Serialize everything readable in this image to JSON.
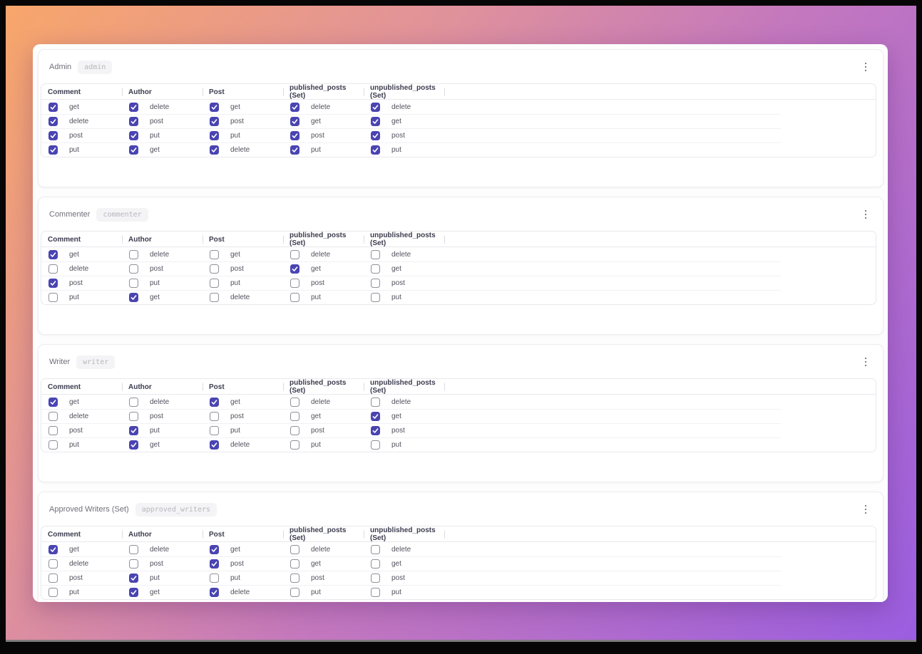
{
  "colors": {
    "accent_checked": "#4a44b2",
    "gradient_start": "#f8a66b",
    "gradient_mid": "#c478bd",
    "gradient_end": "#9b5ee0"
  },
  "icons": {
    "card_menu": "kebab-menu-icon"
  },
  "cards": [
    {
      "title": "Admin",
      "badge": "admin",
      "columns": [
        {
          "header": "Comment",
          "items": [
            {
              "label": "get",
              "checked": true
            },
            {
              "label": "delete",
              "checked": true
            },
            {
              "label": "post",
              "checked": true
            },
            {
              "label": "put",
              "checked": true
            }
          ]
        },
        {
          "header": "Author",
          "items": [
            {
              "label": "delete",
              "checked": true
            },
            {
              "label": "post",
              "checked": true
            },
            {
              "label": "put",
              "checked": true
            },
            {
              "label": "get",
              "checked": true
            }
          ]
        },
        {
          "header": "Post",
          "items": [
            {
              "label": "get",
              "checked": true
            },
            {
              "label": "post",
              "checked": true
            },
            {
              "label": "put",
              "checked": true
            },
            {
              "label": "delete",
              "checked": true
            }
          ]
        },
        {
          "header": "published_posts (Set)",
          "items": [
            {
              "label": "delete",
              "checked": true
            },
            {
              "label": "get",
              "checked": true
            },
            {
              "label": "post",
              "checked": true
            },
            {
              "label": "put",
              "checked": true
            }
          ]
        },
        {
          "header": "unpublished_posts (Set)",
          "items": [
            {
              "label": "delete",
              "checked": true
            },
            {
              "label": "get",
              "checked": true
            },
            {
              "label": "post",
              "checked": true
            },
            {
              "label": "put",
              "checked": true
            }
          ]
        }
      ]
    },
    {
      "title": "Commenter",
      "badge": "commenter",
      "columns": [
        {
          "header": "Comment",
          "items": [
            {
              "label": "get",
              "checked": true
            },
            {
              "label": "delete",
              "checked": false
            },
            {
              "label": "post",
              "checked": true
            },
            {
              "label": "put",
              "checked": false
            }
          ]
        },
        {
          "header": "Author",
          "items": [
            {
              "label": "delete",
              "checked": false
            },
            {
              "label": "post",
              "checked": false
            },
            {
              "label": "put",
              "checked": false
            },
            {
              "label": "get",
              "checked": true
            }
          ]
        },
        {
          "header": "Post",
          "items": [
            {
              "label": "get",
              "checked": false
            },
            {
              "label": "post",
              "checked": false
            },
            {
              "label": "put",
              "checked": false
            },
            {
              "label": "delete",
              "checked": false
            }
          ]
        },
        {
          "header": "published_posts (Set)",
          "items": [
            {
              "label": "delete",
              "checked": false
            },
            {
              "label": "get",
              "checked": true
            },
            {
              "label": "post",
              "checked": false
            },
            {
              "label": "put",
              "checked": false
            }
          ]
        },
        {
          "header": "unpublished_posts (Set)",
          "items": [
            {
              "label": "delete",
              "checked": false
            },
            {
              "label": "get",
              "checked": false
            },
            {
              "label": "post",
              "checked": false
            },
            {
              "label": "put",
              "checked": false
            }
          ]
        }
      ]
    },
    {
      "title": "Writer",
      "badge": "writer",
      "columns": [
        {
          "header": "Comment",
          "items": [
            {
              "label": "get",
              "checked": true
            },
            {
              "label": "delete",
              "checked": false
            },
            {
              "label": "post",
              "checked": false
            },
            {
              "label": "put",
              "checked": false
            }
          ]
        },
        {
          "header": "Author",
          "items": [
            {
              "label": "delete",
              "checked": false
            },
            {
              "label": "post",
              "checked": false
            },
            {
              "label": "put",
              "checked": true
            },
            {
              "label": "get",
              "checked": true
            }
          ]
        },
        {
          "header": "Post",
          "items": [
            {
              "label": "get",
              "checked": true
            },
            {
              "label": "post",
              "checked": false
            },
            {
              "label": "put",
              "checked": false
            },
            {
              "label": "delete",
              "checked": true
            }
          ]
        },
        {
          "header": "published_posts (Set)",
          "items": [
            {
              "label": "delete",
              "checked": false
            },
            {
              "label": "get",
              "checked": false
            },
            {
              "label": "post",
              "checked": false
            },
            {
              "label": "put",
              "checked": false
            }
          ]
        },
        {
          "header": "unpublished_posts (Set)",
          "items": [
            {
              "label": "delete",
              "checked": false
            },
            {
              "label": "get",
              "checked": true
            },
            {
              "label": "post",
              "checked": true
            },
            {
              "label": "put",
              "checked": false
            }
          ]
        }
      ]
    },
    {
      "title": "Approved Writers (Set)",
      "badge": "approved_writers",
      "columns": [
        {
          "header": "Comment",
          "items": [
            {
              "label": "get",
              "checked": true
            },
            {
              "label": "delete",
              "checked": false
            },
            {
              "label": "post",
              "checked": false
            },
            {
              "label": "put",
              "checked": false
            }
          ]
        },
        {
          "header": "Author",
          "items": [
            {
              "label": "delete",
              "checked": false
            },
            {
              "label": "post",
              "checked": false
            },
            {
              "label": "put",
              "checked": true
            },
            {
              "label": "get",
              "checked": true
            }
          ]
        },
        {
          "header": "Post",
          "items": [
            {
              "label": "get",
              "checked": true
            },
            {
              "label": "post",
              "checked": true
            },
            {
              "label": "put",
              "checked": false
            },
            {
              "label": "delete",
              "checked": true
            }
          ]
        },
        {
          "header": "published_posts (Set)",
          "items": [
            {
              "label": "delete",
              "checked": false
            },
            {
              "label": "get",
              "checked": false
            },
            {
              "label": "post",
              "checked": false
            },
            {
              "label": "put",
              "checked": false
            }
          ]
        },
        {
          "header": "unpublished_posts (Set)",
          "items": [
            {
              "label": "delete",
              "checked": false
            },
            {
              "label": "get",
              "checked": false
            },
            {
              "label": "post",
              "checked": false
            },
            {
              "label": "put",
              "checked": false
            }
          ]
        }
      ]
    }
  ]
}
